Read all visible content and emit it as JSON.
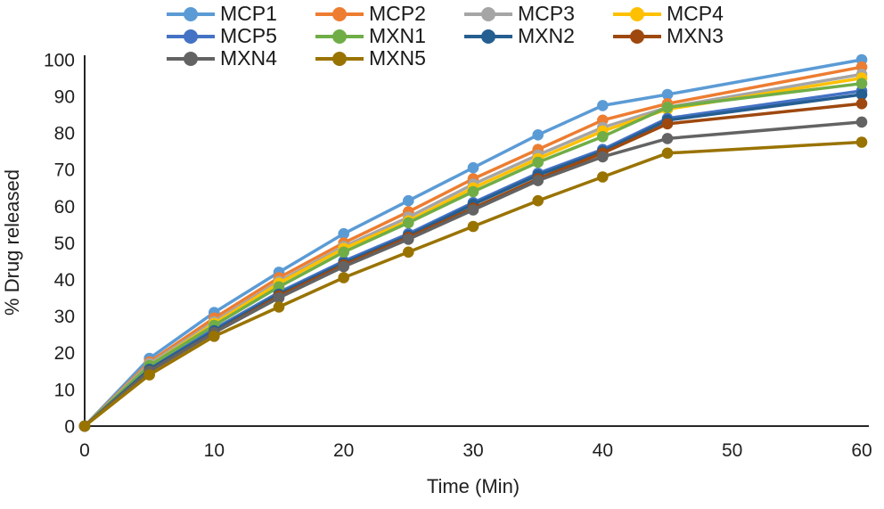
{
  "chart_data": {
    "type": "line",
    "title": "",
    "xlabel": "Time (Min)",
    "ylabel": "% Drug released",
    "x": [
      0,
      5,
      10,
      15,
      20,
      25,
      30,
      35,
      40,
      45,
      60
    ],
    "xlim": [
      0,
      60
    ],
    "ylim": [
      0,
      100
    ],
    "x_ticks": [
      0,
      10,
      20,
      30,
      40,
      50,
      60
    ],
    "y_ticks": [
      0,
      10,
      20,
      30,
      40,
      50,
      60,
      70,
      80,
      90,
      100
    ],
    "grid": false,
    "legend_position": "top-left",
    "marker": "circle",
    "axis_color": "#262626",
    "text_color": "#1f1f1f",
    "series": [
      {
        "name": "MCP1",
        "color": "#5B9BD5",
        "values": [
          0,
          18.5,
          31,
          42,
          52.5,
          61.5,
          70.5,
          79.5,
          87.5,
          90.5,
          100
        ]
      },
      {
        "name": "MCP2",
        "color": "#ED7D31",
        "values": [
          0,
          17.5,
          29.5,
          40.5,
          50,
          58.5,
          67.5,
          75.5,
          83.5,
          88,
          98
        ]
      },
      {
        "name": "MCP3",
        "color": "#A5A5A5",
        "values": [
          0,
          17,
          28.5,
          39.5,
          49,
          57,
          66,
          74,
          81.5,
          87,
          96
        ]
      },
      {
        "name": "MCP4",
        "color": "#FFC000",
        "values": [
          0,
          16.5,
          28,
          39,
          48.5,
          56,
          65,
          73,
          80.5,
          86.5,
          95
        ]
      },
      {
        "name": "MCP5",
        "color": "#4472C4",
        "values": [
          0,
          16,
          26.5,
          36.5,
          45,
          52.5,
          61,
          69,
          75.5,
          84,
          91.5
        ]
      },
      {
        "name": "MXN1",
        "color": "#70AD47",
        "values": [
          0,
          16.5,
          27.5,
          38,
          47.5,
          55.5,
          64,
          72,
          79,
          87,
          93.5
        ]
      },
      {
        "name": "MXN2",
        "color": "#255E91",
        "values": [
          0,
          15.5,
          26,
          36,
          44.5,
          52,
          60.5,
          68.5,
          75,
          83.5,
          90.5
        ]
      },
      {
        "name": "MXN3",
        "color": "#9E480E",
        "values": [
          0,
          15,
          25.5,
          35.5,
          44,
          51.5,
          59.5,
          67.5,
          74.5,
          82.5,
          88
        ]
      },
      {
        "name": "MXN4",
        "color": "#636363",
        "values": [
          0,
          15,
          25.5,
          35,
          43.5,
          51,
          59,
          67,
          73.5,
          78.5,
          83
        ]
      },
      {
        "name": "MXN5",
        "color": "#997300",
        "values": [
          0,
          14,
          24.5,
          32.5,
          40.5,
          47.5,
          54.5,
          61.5,
          68,
          74.5,
          77.5
        ]
      }
    ]
  }
}
